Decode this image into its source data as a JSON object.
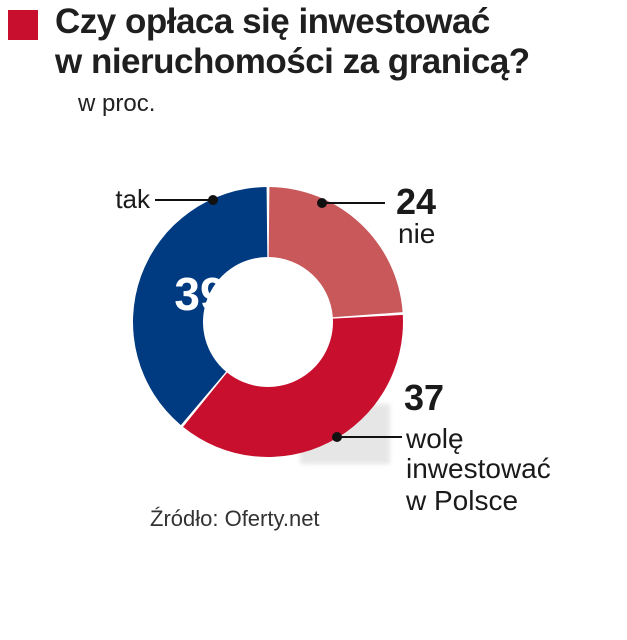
{
  "header": {
    "title_line1": "Czy opłaca się inwestować",
    "title_line2": "w nieruchomości za granicą?",
    "subtitle": "w proc."
  },
  "colors": {
    "accent": "#c8102e",
    "tak": "#003a80",
    "nie": "#c8585a",
    "wole": "#c8102e",
    "shadow": "#dcdcdc"
  },
  "chart_data": {
    "type": "pie",
    "donut": true,
    "unit": "%",
    "slices": [
      {
        "label": "nie",
        "value": 24,
        "value_text": "24",
        "label_lines": [
          "nie"
        ],
        "color": "#c8585a"
      },
      {
        "label": "wolę inwestować w Polsce",
        "value": 37,
        "value_text": "37",
        "label_lines": [
          "wolę",
          "inwestować",
          "w Polsce"
        ],
        "color": "#c8102e"
      },
      {
        "label": "tak",
        "value": 39,
        "value_text": "39",
        "label_lines": [
          "tak"
        ],
        "color": "#003a80"
      }
    ]
  },
  "footer": {
    "source": "Źródło: Oferty.net"
  }
}
